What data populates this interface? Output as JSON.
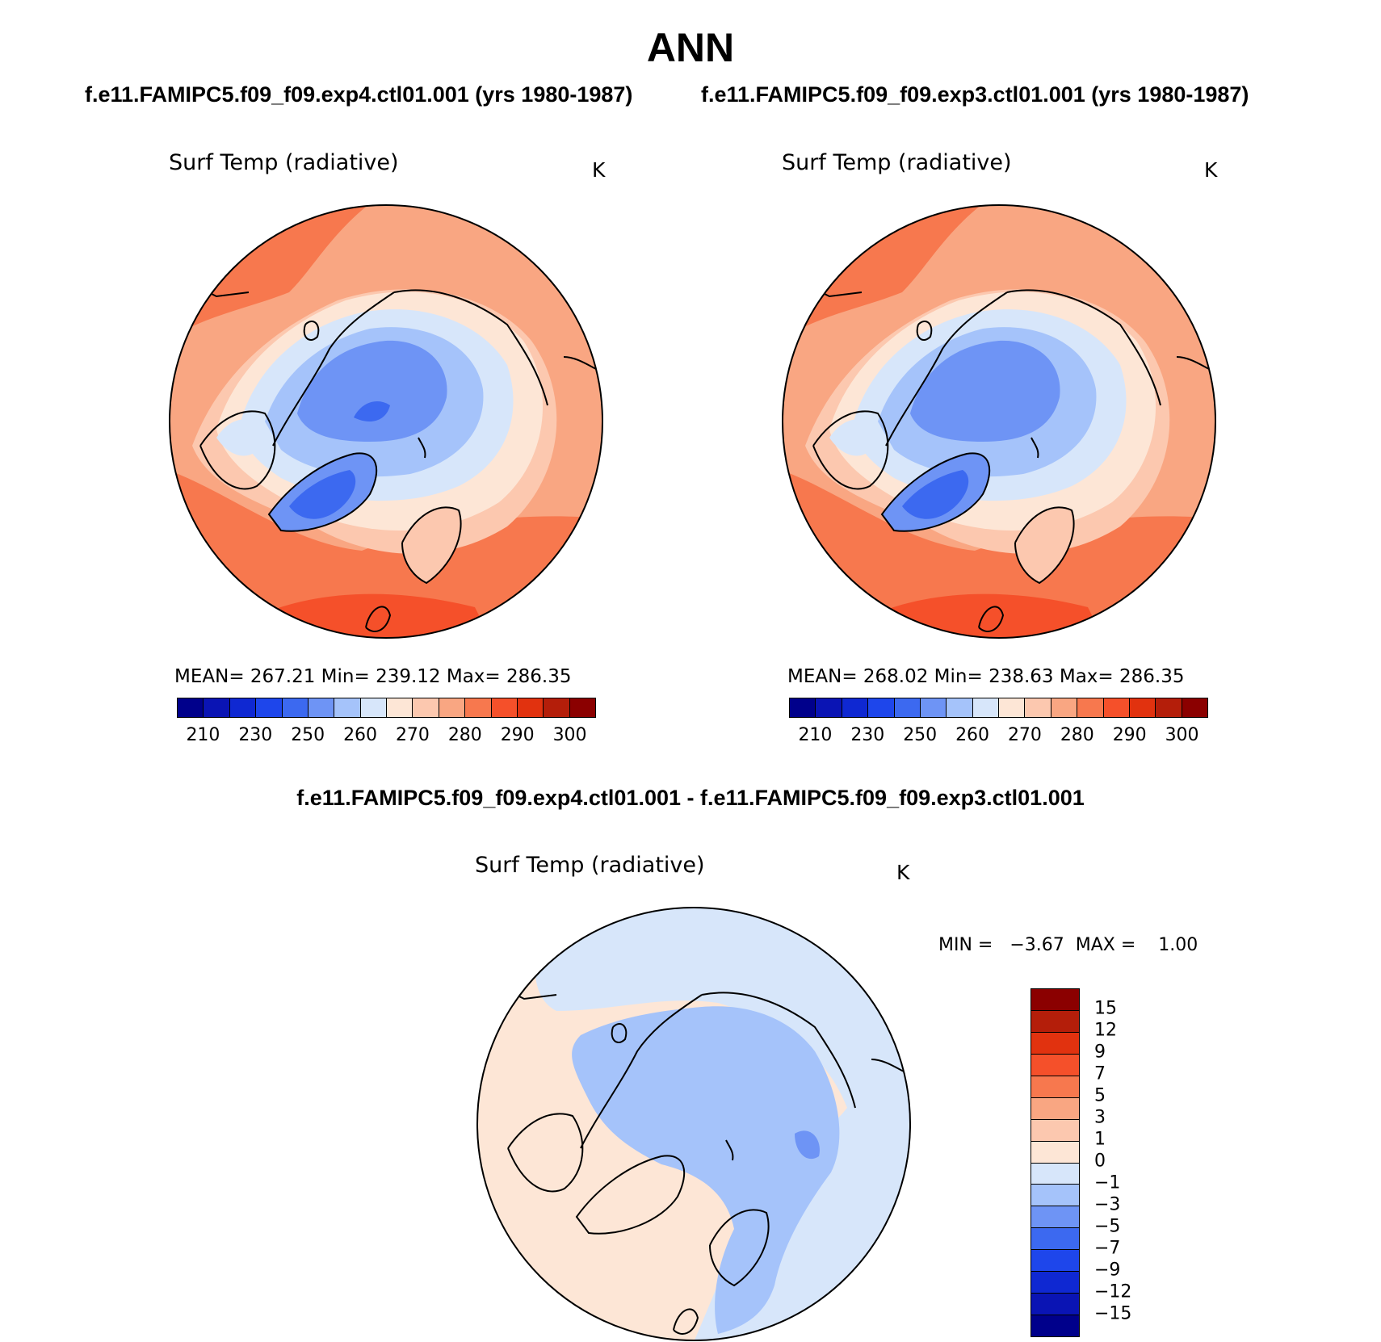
{
  "title": "ANN",
  "subtitle_left": "f.e11.FAMIPC5.f09_f09.exp4.ctl01.001 (yrs 1980-1987)",
  "subtitle_right": "f.e11.FAMIPC5.f09_f09.exp3.ctl01.001 (yrs 1980-1987)",
  "diff_title": "f.e11.FAMIPC5.f09_f09.exp4.ctl01.001 - f.e11.FAMIPC5.f09_f09.exp3.ctl01.001",
  "panels": [
    {
      "variable": "Surf Temp (radiative)",
      "units": "K",
      "stats": "MEAN= 267.21   Min= 239.12   Max= 286.35"
    },
    {
      "variable": "Surf Temp (radiative)",
      "units": "K",
      "stats": "MEAN= 268.02   Min= 238.63   Max= 286.35"
    },
    {
      "variable": "Surf Temp (radiative)",
      "units": "K",
      "minmax": "MIN =   −3.67  MAX =    1.00"
    }
  ],
  "abs_colorbar": {
    "colors": [
      "#00008b",
      "#0a14b4",
      "#0f28d2",
      "#1e46eb",
      "#3c69f0",
      "#6e94f5",
      "#a5c3fa",
      "#d7e6fa",
      "#fde6d6",
      "#fcc8af",
      "#f9a682",
      "#f7784e",
      "#f5502a",
      "#e1320f",
      "#b41e0a",
      "#8b0000"
    ],
    "labels": [
      "210",
      "230",
      "250",
      "260",
      "270",
      "280",
      "290",
      "300"
    ]
  },
  "diff_colorbar": {
    "colors": [
      "#8b0000",
      "#b41e0a",
      "#e1320f",
      "#f5502a",
      "#f7784e",
      "#f9a682",
      "#fcc8af",
      "#fde6d6",
      "#d7e6fa",
      "#a5c3fa",
      "#6e94f5",
      "#3c69f0",
      "#1e46eb",
      "#0f28d2",
      "#0a14b4",
      "#00008b"
    ],
    "labels": [
      "15",
      "12",
      "9",
      "7",
      "5",
      "3",
      "1",
      "0",
      "−1",
      "−3",
      "−5",
      "−7",
      "−9",
      "−12",
      "−15"
    ]
  }
}
